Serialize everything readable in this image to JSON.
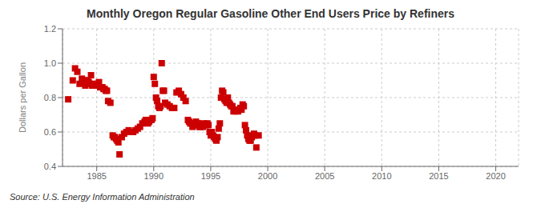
{
  "chart_data": {
    "type": "scatter",
    "title": "Monthly Oregon Regular Gasoline Other End Users Price by Refiners",
    "ylabel": "Dollars per Gallon",
    "annotation": "Source: U.S. Energy Information Administration",
    "color": "#cc0000",
    "marker": "square",
    "grid": true,
    "xlim": [
      1982,
      2022
    ],
    "ylim": [
      0.4,
      1.2
    ],
    "xticks": [
      1985,
      1990,
      1995,
      2000,
      2005,
      2010,
      2015,
      2020
    ],
    "yticks": [
      0.4,
      0.6,
      0.8,
      {
        "value": 1.0,
        "label": "1.0"
      },
      1.2
    ],
    "x": [
      1982.5,
      1982.9,
      1983.1,
      1983.3,
      1983.5,
      1983.7,
      1983.9,
      1984.0,
      1984.1,
      1984.2,
      1984.3,
      1984.4,
      1984.5,
      1984.6,
      1984.7,
      1984.8,
      1984.9,
      1985.0,
      1985.1,
      1985.2,
      1985.3,
      1985.4,
      1985.5,
      1985.6,
      1985.7,
      1985.8,
      1985.9,
      1986.0,
      1986.2,
      1986.4,
      1986.5,
      1986.6,
      1986.7,
      1986.8,
      1986.9,
      1987.0,
      1987.2,
      1987.4,
      1987.6,
      1987.8,
      1988.0,
      1988.2,
      1988.4,
      1988.6,
      1988.8,
      1989.0,
      1989.2,
      1989.3,
      1989.4,
      1989.5,
      1989.6,
      1989.7,
      1989.8,
      1989.9,
      1990.0,
      1990.1,
      1990.2,
      1990.3,
      1990.4,
      1990.5,
      1990.6,
      1990.7,
      1990.8,
      1990.9,
      1991.0,
      1991.2,
      1991.4,
      1991.6,
      1991.8,
      1992.0,
      1992.2,
      1992.4,
      1992.6,
      1992.8,
      1993.0,
      1993.1,
      1993.2,
      1993.3,
      1993.4,
      1993.5,
      1993.6,
      1993.7,
      1993.8,
      1993.9,
      1994.0,
      1994.1,
      1994.2,
      1994.3,
      1994.4,
      1994.5,
      1994.6,
      1994.7,
      1994.8,
      1994.9,
      1995.0,
      1995.1,
      1995.2,
      1995.3,
      1995.4,
      1995.5,
      1995.6,
      1995.7,
      1995.8,
      1995.9,
      1996.0,
      1996.1,
      1996.2,
      1996.3,
      1996.4,
      1996.5,
      1996.6,
      1996.7,
      1996.8,
      1996.9,
      1997.0,
      1997.1,
      1997.2,
      1997.3,
      1997.4,
      1997.5,
      1997.6,
      1997.7,
      1997.8,
      1997.9,
      1998.0,
      1998.1,
      1998.2,
      1998.3,
      1998.4,
      1998.5,
      1998.6,
      1998.7,
      1998.8,
      1998.9,
      1999.0,
      1999.2
    ],
    "values": [
      0.79,
      0.9,
      0.97,
      0.95,
      0.88,
      0.91,
      0.9,
      0.87,
      0.9,
      0.9,
      0.89,
      0.88,
      0.93,
      0.87,
      0.88,
      0.87,
      0.87,
      0.88,
      0.87,
      0.89,
      0.86,
      0.86,
      0.86,
      0.85,
      0.85,
      0.84,
      0.84,
      0.78,
      0.77,
      0.58,
      0.57,
      0.57,
      0.56,
      0.55,
      0.54,
      0.47,
      0.57,
      0.59,
      0.6,
      0.61,
      0.6,
      0.6,
      0.61,
      0.62,
      0.63,
      0.65,
      0.66,
      0.67,
      0.67,
      0.65,
      0.66,
      0.67,
      0.67,
      0.68,
      0.92,
      0.88,
      0.8,
      0.78,
      0.75,
      0.74,
      0.75,
      1.0,
      0.84,
      0.84,
      0.77,
      0.76,
      0.75,
      0.74,
      0.74,
      0.83,
      0.84,
      0.82,
      0.8,
      0.78,
      0.67,
      0.66,
      0.65,
      0.65,
      0.63,
      0.64,
      0.65,
      0.66,
      0.65,
      0.65,
      0.63,
      0.63,
      0.64,
      0.63,
      0.65,
      0.64,
      0.64,
      0.65,
      0.64,
      0.6,
      0.58,
      0.6,
      0.58,
      0.57,
      0.56,
      0.55,
      0.57,
      0.62,
      0.65,
      0.8,
      0.84,
      0.83,
      0.79,
      0.78,
      0.77,
      0.8,
      0.77,
      0.76,
      0.75,
      0.75,
      0.72,
      0.73,
      0.72,
      0.73,
      0.72,
      0.73,
      0.74,
      0.73,
      0.76,
      0.75,
      0.64,
      0.61,
      0.58,
      0.56,
      0.55,
      0.55,
      0.57,
      0.58,
      0.59,
      0.58,
      0.51,
      0.58
    ]
  }
}
